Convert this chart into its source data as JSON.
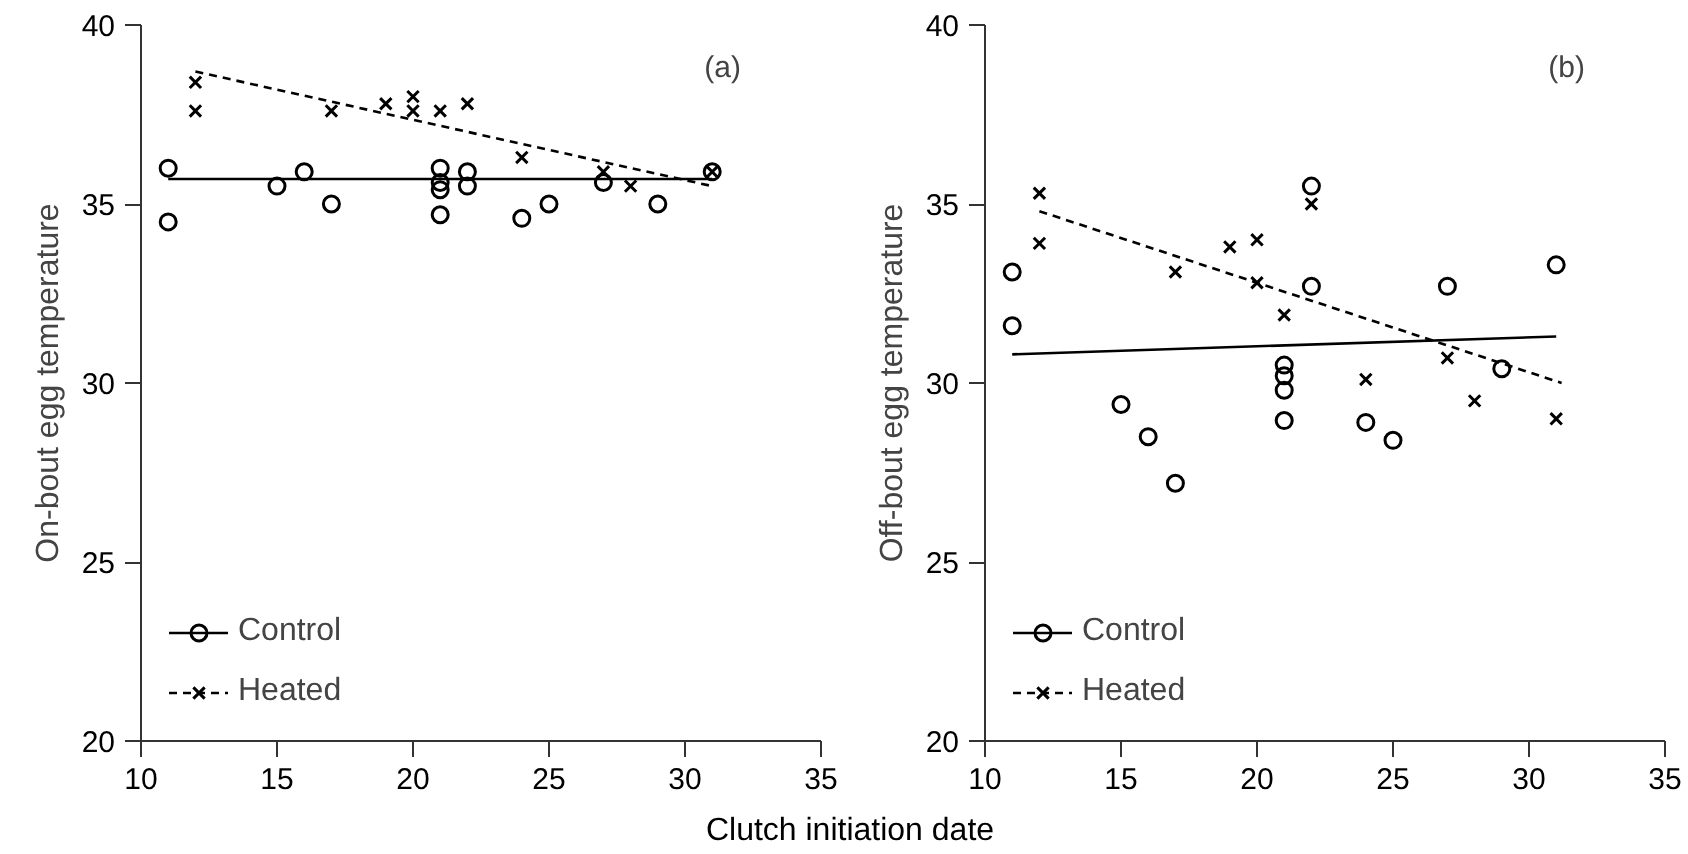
{
  "chart_data": [
    {
      "type": "scatter",
      "ylabel": "On-bout egg temperature",
      "xlabel": "Clutch initiation date",
      "annotations": [
        "(a)"
      ],
      "xlim": [
        10,
        35
      ],
      "ylim": [
        20,
        40
      ],
      "xticks": [
        10,
        15,
        20,
        25,
        30,
        35
      ],
      "yticks": [
        20,
        25,
        30,
        35,
        40
      ],
      "grid": false,
      "legend": "bottom left",
      "series": [
        {
          "name": "Control",
          "color": "#000000",
          "marker": "circle",
          "x": [
            11,
            11,
            15,
            16,
            17,
            21,
            21,
            21,
            21,
            22,
            22,
            24,
            25,
            27,
            29,
            31
          ],
          "values": [
            36.0,
            34.5,
            35.5,
            35.9,
            35.0,
            36.0,
            35.6,
            35.4,
            34.7,
            35.9,
            35.5,
            34.6,
            35.0,
            35.6,
            35.0,
            35.9
          ]
        },
        {
          "type": "line",
          "color": "#000000",
          "line_style": "solid",
          "x": [
            11,
            31
          ],
          "values": [
            35.7,
            35.7
          ]
        },
        {
          "name": "Heated",
          "color": "#000000",
          "marker": "cross",
          "x": [
            12,
            12,
            17,
            19,
            20,
            20,
            21,
            22,
            24,
            27,
            28,
            31
          ],
          "values": [
            38.4,
            37.6,
            37.6,
            37.8,
            38.0,
            37.6,
            37.6,
            37.8,
            36.3,
            35.9,
            35.5,
            35.9
          ]
        },
        {
          "type": "line",
          "color": "#000000",
          "line_style": "dashed",
          "x": [
            12,
            31
          ],
          "values": [
            38.7,
            35.5
          ]
        }
      ]
    },
    {
      "type": "scatter",
      "ylabel": "Off-bout egg temperature",
      "annotations": [
        "(b)"
      ],
      "xlim": [
        10,
        35
      ],
      "ylim": [
        20,
        40
      ],
      "xticks": [
        10,
        15,
        20,
        25,
        30,
        35
      ],
      "yticks": [
        20,
        25,
        30,
        35,
        40
      ],
      "grid": false,
      "legend": "bottom left",
      "series": [
        {
          "name": "Control",
          "color": "#000000",
          "marker": "circle",
          "x": [
            11,
            11,
            15,
            16,
            17,
            21,
            21,
            21,
            21,
            22,
            22,
            24,
            25,
            27,
            29,
            31
          ],
          "values": [
            33.1,
            31.6,
            29.4,
            28.5,
            27.2,
            30.5,
            30.2,
            29.8,
            28.95,
            35.5,
            32.7,
            28.9,
            28.4,
            32.7,
            30.4,
            33.3
          ]
        },
        {
          "type": "line",
          "color": "#000000",
          "line_style": "solid",
          "x": [
            11,
            31
          ],
          "values": [
            30.8,
            31.3
          ]
        },
        {
          "name": "Heated",
          "color": "#000000",
          "marker": "cross",
          "x": [
            12,
            12,
            17,
            19,
            20,
            20,
            21,
            22,
            24,
            27,
            28,
            31
          ],
          "values": [
            35.3,
            33.9,
            33.1,
            33.8,
            34.0,
            32.8,
            31.9,
            35.0,
            30.1,
            30.7,
            29.5,
            29.0
          ]
        },
        {
          "type": "line",
          "color": "#000000",
          "line_style": "dashed",
          "x": [
            12,
            31.2
          ],
          "values": [
            34.8,
            30.0
          ]
        }
      ]
    }
  ]
}
